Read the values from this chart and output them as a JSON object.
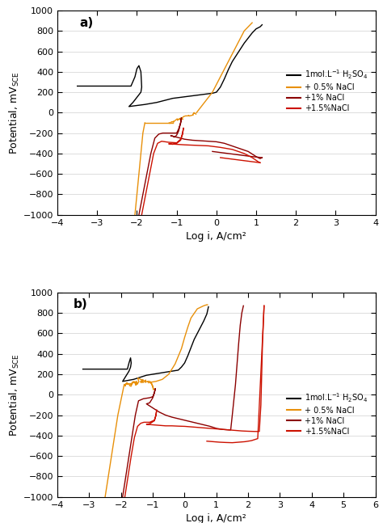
{
  "panel_a": {
    "xlim": [
      -4,
      4
    ],
    "ylim": [
      -1000,
      1000
    ],
    "xlabel": "Log i, A/cm²",
    "ylabel": "Potential, mV$_\\mathrm{SCE}$",
    "label": "a)",
    "xticks": [
      -4,
      -3,
      -2,
      -1,
      0,
      1,
      2,
      3,
      4
    ],
    "yticks": [
      -1000,
      -800,
      -600,
      -400,
      -200,
      0,
      200,
      400,
      600,
      800,
      1000
    ]
  },
  "panel_b": {
    "xlim": [
      -4,
      6
    ],
    "ylim": [
      -1000,
      1000
    ],
    "xlabel": "Log i, A/cm²",
    "ylabel": "Potential, mV$_\\mathrm{SCE}$",
    "label": "b)",
    "xticks": [
      -4,
      -3,
      -2,
      -1,
      0,
      1,
      2,
      3,
      4,
      5,
      6
    ],
    "yticks": [
      -1000,
      -800,
      -600,
      -400,
      -200,
      0,
      200,
      400,
      600,
      800,
      1000
    ]
  },
  "colors": {
    "black": "#000000",
    "orange": "#E8900A",
    "dark_red": "#8B0000",
    "bright_red": "#CC1100"
  },
  "legend_labels": [
    "1mol.L$^{-1}$ H$_2$SO$_4$",
    "+ 0.5% NaCl",
    "+1% NaCl",
    "+1.5%NaCl"
  ]
}
